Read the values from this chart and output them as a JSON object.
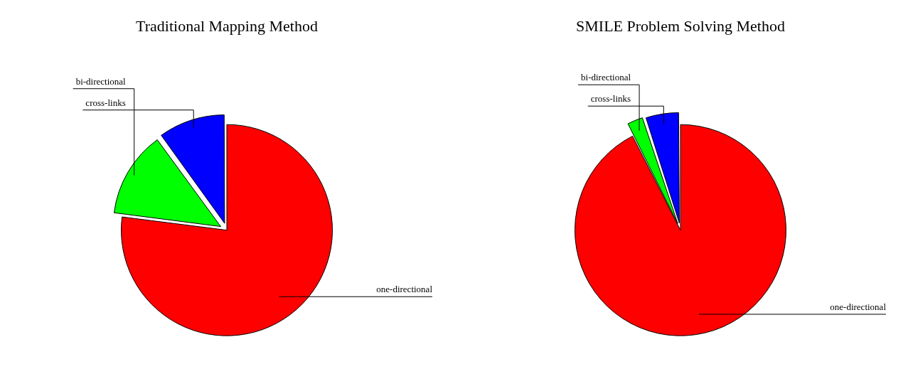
{
  "chart_data": [
    {
      "type": "pie",
      "title": "Traditional Mapping Method",
      "categories": [
        "one-directional",
        "bi-directional",
        "cross-links"
      ],
      "values": [
        77,
        13,
        10
      ],
      "colors": [
        "#ff0000",
        "#00ff00",
        "#0000ff"
      ]
    },
    {
      "type": "pie",
      "title": "SMILE Problem Solving Method",
      "categories": [
        "one-directional",
        "bi-directional",
        "cross-links"
      ],
      "values": [
        92.5,
        2.5,
        5
      ],
      "colors": [
        "#ff0000",
        "#00ff00",
        "#0000ff"
      ]
    }
  ]
}
